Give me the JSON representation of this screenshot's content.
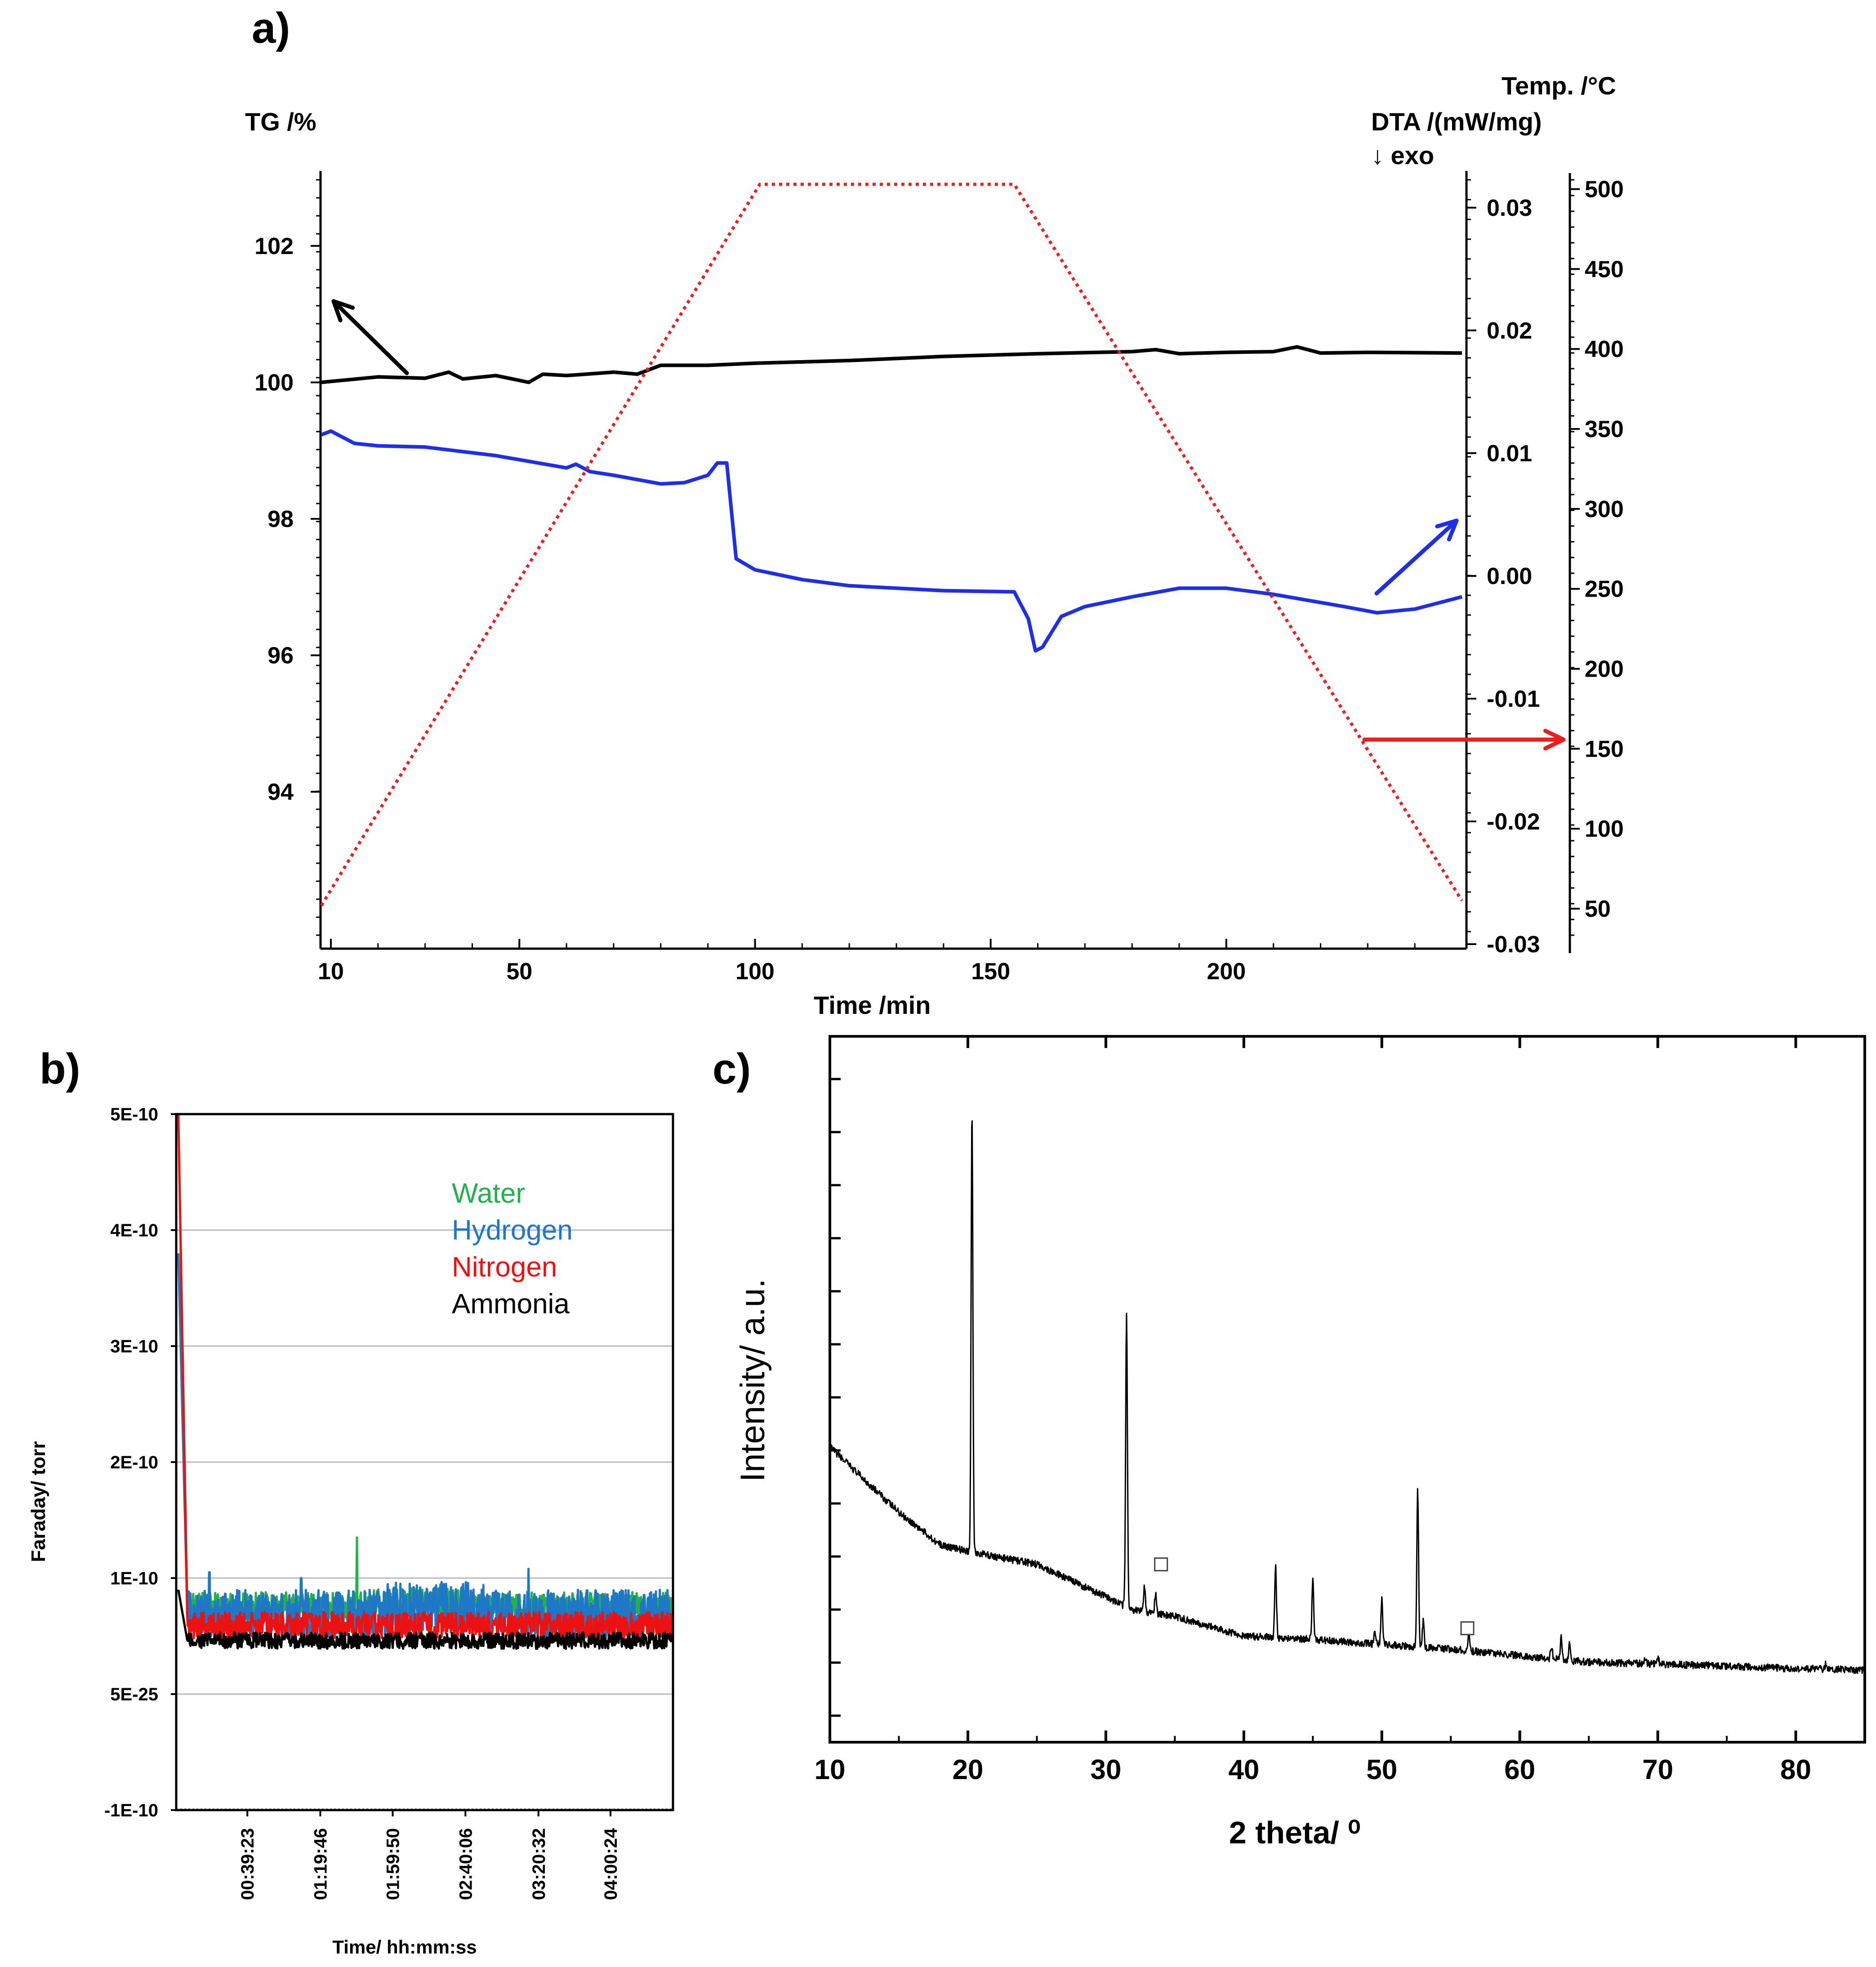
{
  "colors": {
    "tg": "#000000",
    "dta": "#1f2fe6",
    "temp": "#ee1c1c",
    "water": "#22b14c",
    "hydrogen": "#1f77c8",
    "nitrogen": "#ee1111",
    "ammonia": "#000000",
    "xrd": "#000000"
  },
  "panels": {
    "a": {
      "label": "a)"
    },
    "b": {
      "label": "b)"
    },
    "c": {
      "label": "c)"
    }
  },
  "chart_data": [
    {
      "id": "a",
      "type": "line",
      "xlabel": "Time /min",
      "xlim": [
        8,
        250
      ],
      "xticks": [
        10,
        50,
        100,
        150,
        200
      ],
      "axes": {
        "tg": {
          "label": "TG /%",
          "lim": [
            91.7,
            103.1
          ],
          "ticks": [
            94,
            96,
            98,
            100,
            102
          ]
        },
        "dta": {
          "label": "DTA /(mW/mg)",
          "note": "↓ exo",
          "lim": [
            -0.03,
            0.033
          ],
          "ticks": [
            -0.03,
            -0.02,
            -0.01,
            0.0,
            0.01,
            0.02,
            0.03
          ],
          "tick_labels": [
            "-0.03",
            "-0.02",
            "-0.01",
            "0.00",
            "0.01",
            "0.02",
            "0.03"
          ]
        },
        "temp": {
          "label": "Temp. /°C",
          "lim": [
            25,
            510
          ],
          "ticks": [
            50,
            100,
            150,
            200,
            250,
            300,
            350,
            400,
            450,
            500
          ]
        }
      },
      "series": [
        {
          "key": "tg",
          "axis": "tg",
          "style": "solid",
          "x": [
            8,
            20,
            30,
            35,
            38,
            45,
            52,
            55,
            60,
            70,
            75,
            80,
            90,
            100,
            120,
            140,
            160,
            180,
            185,
            190,
            200,
            210,
            215,
            220,
            230,
            250
          ],
          "y": [
            100.0,
            100.08,
            100.06,
            100.15,
            100.05,
            100.1,
            100.0,
            100.12,
            100.1,
            100.15,
            100.12,
            100.25,
            100.25,
            100.28,
            100.32,
            100.38,
            100.42,
            100.45,
            100.48,
            100.42,
            100.44,
            100.45,
            100.52,
            100.43,
            100.44,
            100.43
          ]
        },
        {
          "key": "dta",
          "axis": "dta",
          "style": "solid",
          "x": [
            8,
            10,
            15,
            20,
            30,
            45,
            60,
            62,
            65,
            70,
            80,
            85,
            90,
            92,
            94,
            96,
            100,
            110,
            120,
            140,
            155,
            158,
            159.5,
            161,
            165,
            170,
            180,
            190,
            200,
            210,
            225,
            232,
            240,
            250
          ],
          "y": [
            0.0115,
            0.0118,
            0.0108,
            0.0106,
            0.0105,
            0.0098,
            0.0088,
            0.0091,
            0.0085,
            0.0082,
            0.0075,
            0.0076,
            0.0082,
            0.0092,
            0.0092,
            0.0014,
            0.0005,
            -0.0003,
            -0.0008,
            -0.0012,
            -0.0013,
            -0.0035,
            -0.0061,
            -0.0058,
            -0.0033,
            -0.0025,
            -0.0017,
            -0.001,
            -0.001,
            -0.0015,
            -0.0025,
            -0.003,
            -0.0027,
            -0.0017
          ]
        },
        {
          "key": "temp",
          "axis": "temp",
          "style": "dotted",
          "x": [
            8,
            101,
            155,
            250
          ],
          "y": [
            52,
            503,
            503,
            55
          ]
        }
      ],
      "annotations": [
        {
          "type": "arrow",
          "target": "tg",
          "direction": "left-up"
        },
        {
          "type": "arrow",
          "target": "dta",
          "direction": "right-up"
        },
        {
          "type": "arrow",
          "target": "temp",
          "direction": "right"
        }
      ]
    },
    {
      "id": "b",
      "type": "line",
      "xlabel": "Time/ hh:mm:ss",
      "ylabel": "Faraday/ torr",
      "xlim": [
        0,
        16500
      ],
      "xticks_seconds": [
        2363,
        4786,
        7190,
        9606,
        12032,
        14424
      ],
      "xtick_labels": [
        "00:39:23",
        "01:19:46",
        "01:59:50",
        "02:40:06",
        "03:20:32",
        "04:00:24"
      ],
      "ylim": [
        -1e-10,
        5e-10
      ],
      "yticks": [
        -1e-10,
        5e-25,
        1e-10,
        2e-10,
        3e-10,
        4e-10,
        5e-10
      ],
      "ytick_labels": [
        "-1E-10",
        "5E-25",
        "1E-10",
        "2E-10",
        "3E-10",
        "4E-10",
        "5E-10"
      ],
      "grid": true,
      "legend": "top-right",
      "series": [
        {
          "name": "Water",
          "color_key": "water",
          "baseline": 7.5e-11,
          "noise": 1.3e-11,
          "initial_peak": 5e-10,
          "spikes": [
            {
              "t": 6000,
              "v": 1.35e-10
            }
          ]
        },
        {
          "name": "Hydrogen",
          "color_key": "hydrogen",
          "baseline": 6.8e-11,
          "noise": 2.2e-11,
          "initial_peak": 3.8e-10,
          "spikes": [
            {
              "t": 1100,
              "v": 1.05e-10
            },
            {
              "t": 4150,
              "v": 1e-10
            },
            {
              "t": 11700,
              "v": 1.08e-10
            }
          ]
        },
        {
          "name": "Nitrogen",
          "color_key": "nitrogen",
          "baseline": 5.9e-11,
          "noise": 1.2e-11,
          "initial_peak": 5e-10,
          "spikes": []
        },
        {
          "name": "Ammonia",
          "color_key": "ammonia",
          "baseline": 4.6e-11,
          "noise": 7e-12,
          "initial_peak": 9e-11,
          "spikes": []
        }
      ]
    },
    {
      "id": "c",
      "type": "line",
      "xlabel": "2 theta/ ⁰",
      "ylabel": "Intensity/ a.u.",
      "xlim": [
        10,
        85
      ],
      "xticks": [
        10,
        20,
        30,
        40,
        50,
        60,
        70,
        80
      ],
      "ylim": [
        0,
        100
      ],
      "background": {
        "x": [
          10,
          12,
          15,
          18,
          20,
          25,
          30,
          32,
          35,
          40,
          45,
          50,
          55,
          60,
          65,
          70,
          75,
          80,
          85
        ],
        "y": [
          37,
          33,
          27,
          22,
          21,
          19,
          14,
          12,
          11,
          8,
          7.5,
          6.7,
          6,
          5,
          4,
          3.7,
          3.4,
          3.0,
          2.8
        ]
      },
      "peaks": [
        {
          "x": 20.3,
          "h": 68
        },
        {
          "x": 31.5,
          "h": 45
        },
        {
          "x": 32.8,
          "h": 4
        },
        {
          "x": 33.6,
          "h": 3
        },
        {
          "x": 42.3,
          "h": 11
        },
        {
          "x": 45.0,
          "h": 9
        },
        {
          "x": 49.5,
          "h": 2
        },
        {
          "x": 50.0,
          "h": 7
        },
        {
          "x": 52.6,
          "h": 24
        },
        {
          "x": 53.0,
          "h": 4
        },
        {
          "x": 56.3,
          "h": 2.5
        },
        {
          "x": 62.3,
          "h": 2
        },
        {
          "x": 63.0,
          "h": 3.5
        },
        {
          "x": 63.6,
          "h": 2.5
        },
        {
          "x": 69.1,
          "h": 1
        },
        {
          "x": 70.0,
          "h": 1.2
        },
        {
          "x": 82.2,
          "h": 1
        }
      ],
      "markers": [
        {
          "x": 34.0,
          "y": 19,
          "symbol": "square"
        },
        {
          "x": 56.2,
          "y": 9.2,
          "symbol": "square"
        }
      ]
    }
  ]
}
